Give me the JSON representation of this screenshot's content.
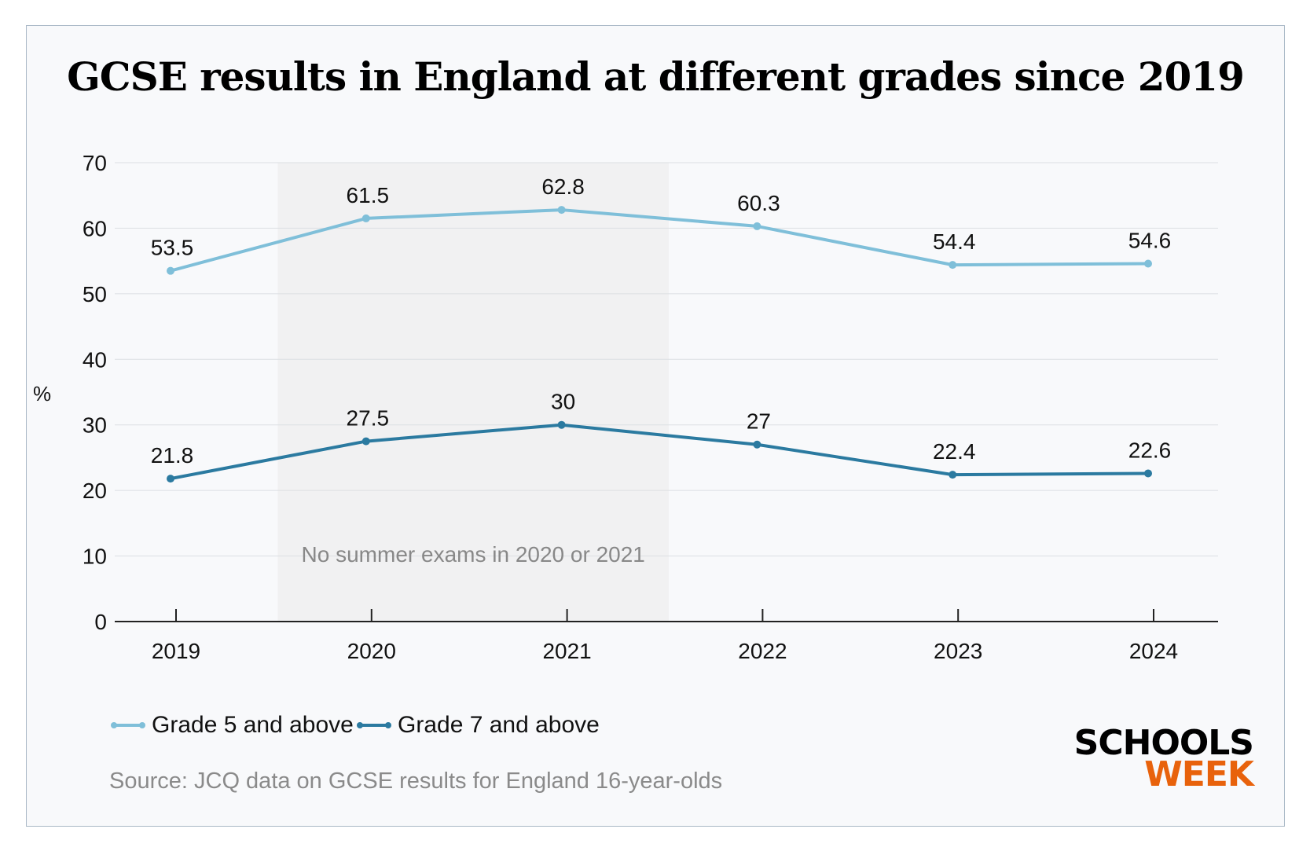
{
  "chart_data": {
    "type": "line",
    "title": "GCSE results in England at different grades since 2019",
    "ylabel": "%",
    "xlabel": "",
    "categories": [
      "2019",
      "2020",
      "2021",
      "2022",
      "2023",
      "2024"
    ],
    "yticks": [
      "0",
      "10",
      "20",
      "30",
      "40",
      "50",
      "60",
      "70"
    ],
    "ylim": [
      0,
      70
    ],
    "grid": true,
    "legend_placement": "bottom-left",
    "series": [
      {
        "name": "Grade 5 and above",
        "values": [
          53.5,
          61.5,
          62.8,
          60.3,
          54.4,
          54.6
        ],
        "color": "#7fbfd9"
      },
      {
        "name": "Grade 7 and above",
        "values": [
          21.8,
          27.5,
          30,
          27,
          22.4,
          22.6
        ],
        "color": "#2b7aa0"
      }
    ],
    "annotations": [
      {
        "text": "No summer exams in 2020 or 2021",
        "shaded_range": [
          "2020",
          "2021"
        ]
      }
    ],
    "source": "Source: JCQ data on GCSE results for England 16-year-olds"
  },
  "logo": {
    "line1": "SCHOOLS",
    "line2": "WEEK"
  }
}
